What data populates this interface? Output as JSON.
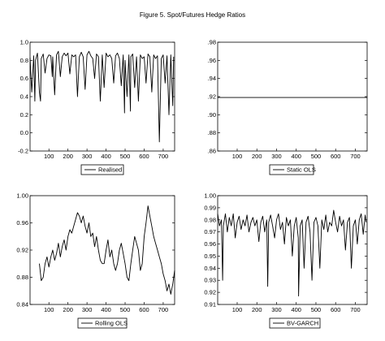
{
  "figure_title": "Figure 5. Spot/Futures Hedge Ratios",
  "chart_data": [
    {
      "type": "line",
      "legend": "Realised",
      "xlim": [
        1,
        760
      ],
      "ylim": [
        -0.2,
        1.0
      ],
      "yticks": [
        -0.2,
        0.0,
        0.2,
        0.4,
        0.6,
        0.8,
        1.0
      ],
      "ytick_labels": [
        "-0.2",
        "0.0",
        "0.2",
        "0.4",
        "0.6",
        "0.8",
        "1.0"
      ],
      "xticks": [
        100,
        200,
        300,
        400,
        500,
        600,
        700
      ],
      "x": [
        1,
        10,
        20,
        26,
        30,
        40,
        50,
        56,
        60,
        70,
        80,
        90,
        100,
        110,
        118,
        120,
        130,
        140,
        150,
        160,
        170,
        180,
        190,
        200,
        210,
        220,
        230,
        240,
        250,
        260,
        270,
        280,
        290,
        300,
        310,
        320,
        330,
        340,
        350,
        360,
        370,
        380,
        390,
        400,
        410,
        420,
        430,
        440,
        450,
        460,
        470,
        480,
        490,
        497,
        500,
        510,
        520,
        528,
        530,
        540,
        550,
        560,
        570,
        580,
        590,
        600,
        610,
        620,
        630,
        640,
        650,
        660,
        670,
        680,
        690,
        700,
        710,
        720,
        730,
        740,
        750,
        755
      ],
      "y": [
        0.83,
        0.45,
        0.85,
        0.35,
        0.8,
        0.88,
        0.45,
        0.35,
        0.82,
        0.87,
        0.66,
        0.82,
        0.86,
        0.85,
        0.62,
        0.84,
        0.42,
        0.86,
        0.9,
        0.62,
        0.84,
        0.88,
        0.85,
        0.88,
        0.65,
        0.86,
        0.84,
        0.86,
        0.4,
        0.84,
        0.89,
        0.84,
        0.48,
        0.86,
        0.9,
        0.85,
        0.82,
        0.6,
        0.87,
        0.84,
        0.35,
        0.86,
        0.5,
        0.88,
        0.84,
        0.86,
        0.82,
        0.55,
        0.85,
        0.88,
        0.82,
        0.52,
        0.86,
        0.22,
        0.8,
        0.4,
        0.86,
        0.24,
        0.84,
        0.87,
        0.5,
        0.84,
        0.35,
        0.86,
        0.82,
        0.84,
        0.55,
        0.87,
        0.84,
        0.45,
        0.86,
        0.82,
        0.85,
        -0.1,
        0.82,
        0.86,
        0.55,
        0.85,
        0.2,
        0.86,
        0.3,
        0.84
      ]
    },
    {
      "type": "line",
      "legend": "Static OLS",
      "xlim": [
        1,
        760
      ],
      "ylim": [
        0.86,
        0.98
      ],
      "yticks": [
        0.86,
        0.88,
        0.9,
        0.92,
        0.94,
        0.96,
        0.98
      ],
      "ytick_labels": [
        ".86",
        ".88",
        ".90",
        ".92",
        ".94",
        ".96",
        ".98"
      ],
      "xticks": [
        100,
        200,
        300,
        400,
        500,
        600,
        700
      ],
      "x": [
        1,
        760
      ],
      "y": [
        0.919,
        0.919
      ]
    },
    {
      "type": "line",
      "legend": "Rolling OLS",
      "xlim": [
        1,
        760
      ],
      "ylim": [
        0.84,
        1.0
      ],
      "yticks": [
        0.84,
        0.88,
        0.92,
        0.96,
        1.0
      ],
      "ytick_labels": [
        "0.84",
        "0.88",
        "0.92",
        "0.96",
        "1.00"
      ],
      "xticks": [
        100,
        200,
        300,
        400,
        500,
        600,
        700
      ],
      "x": [
        50,
        60,
        70,
        80,
        90,
        100,
        110,
        120,
        130,
        140,
        150,
        160,
        170,
        180,
        190,
        200,
        210,
        220,
        230,
        240,
        250,
        260,
        270,
        280,
        290,
        300,
        310,
        320,
        330,
        340,
        350,
        360,
        370,
        380,
        390,
        400,
        410,
        420,
        430,
        440,
        450,
        460,
        470,
        480,
        490,
        500,
        510,
        520,
        530,
        540,
        550,
        560,
        570,
        580,
        590,
        600,
        610,
        620,
        630,
        640,
        650,
        660,
        670,
        680,
        690,
        700,
        710,
        720,
        730,
        740,
        750,
        760
      ],
      "y": [
        0.9,
        0.875,
        0.88,
        0.9,
        0.91,
        0.895,
        0.91,
        0.92,
        0.905,
        0.915,
        0.93,
        0.91,
        0.925,
        0.935,
        0.92,
        0.94,
        0.95,
        0.945,
        0.955,
        0.965,
        0.975,
        0.97,
        0.96,
        0.97,
        0.955,
        0.945,
        0.96,
        0.94,
        0.945,
        0.925,
        0.94,
        0.92,
        0.905,
        0.9,
        0.9,
        0.92,
        0.935,
        0.91,
        0.92,
        0.9,
        0.89,
        0.9,
        0.92,
        0.93,
        0.915,
        0.9,
        0.88,
        0.875,
        0.9,
        0.92,
        0.94,
        0.93,
        0.92,
        0.89,
        0.9,
        0.94,
        0.96,
        0.985,
        0.97,
        0.955,
        0.94,
        0.93,
        0.92,
        0.91,
        0.9,
        0.885,
        0.875,
        0.86,
        0.87,
        0.855,
        0.87,
        0.89
      ]
    },
    {
      "type": "line",
      "legend": "BV-GARCH",
      "xlim": [
        1,
        760
      ],
      "ylim": [
        0.91,
        1.0
      ],
      "yticks": [
        0.91,
        0.92,
        0.93,
        0.94,
        0.95,
        0.96,
        0.97,
        0.98,
        0.99,
        1.0
      ],
      "ytick_labels": [
        "0.91",
        "0.92",
        "0.93",
        "0.94",
        "0.95",
        "0.96",
        "0.97",
        "0.98",
        "0.99",
        "1.00"
      ],
      "xticks": [
        100,
        200,
        300,
        400,
        500,
        600,
        700
      ],
      "x": [
        1,
        10,
        20,
        26,
        30,
        40,
        50,
        60,
        70,
        80,
        90,
        100,
        110,
        120,
        130,
        140,
        150,
        160,
        170,
        180,
        190,
        200,
        210,
        220,
        230,
        240,
        250,
        255,
        260,
        270,
        280,
        290,
        300,
        310,
        320,
        330,
        340,
        350,
        360,
        370,
        380,
        390,
        400,
        410,
        412,
        420,
        430,
        440,
        450,
        460,
        470,
        480,
        490,
        500,
        510,
        520,
        530,
        540,
        550,
        560,
        570,
        580,
        590,
        600,
        610,
        620,
        630,
        640,
        650,
        660,
        670,
        680,
        690,
        700,
        710,
        720,
        730,
        740,
        750,
        755
      ],
      "y": [
        0.985,
        0.975,
        0.98,
        0.93,
        0.975,
        0.985,
        0.97,
        0.982,
        0.975,
        0.985,
        0.965,
        0.978,
        0.983,
        0.972,
        0.98,
        0.975,
        0.984,
        0.97,
        0.978,
        0.982,
        0.975,
        0.98,
        0.962,
        0.978,
        0.983,
        0.97,
        0.98,
        0.925,
        0.978,
        0.984,
        0.975,
        0.965,
        0.98,
        0.985,
        0.972,
        0.978,
        0.96,
        0.982,
        0.975,
        0.98,
        0.95,
        0.975,
        0.982,
        0.965,
        0.917,
        0.975,
        0.98,
        0.94,
        0.978,
        0.983,
        0.97,
        0.93,
        0.978,
        0.982,
        0.975,
        0.94,
        0.98,
        0.972,
        0.984,
        0.97,
        0.978,
        0.975,
        0.988,
        0.978,
        0.97,
        0.983,
        0.975,
        0.98,
        0.955,
        0.978,
        0.982,
        0.94,
        0.975,
        0.98,
        0.96,
        0.98,
        0.985,
        0.968,
        0.984,
        0.978
      ]
    }
  ]
}
